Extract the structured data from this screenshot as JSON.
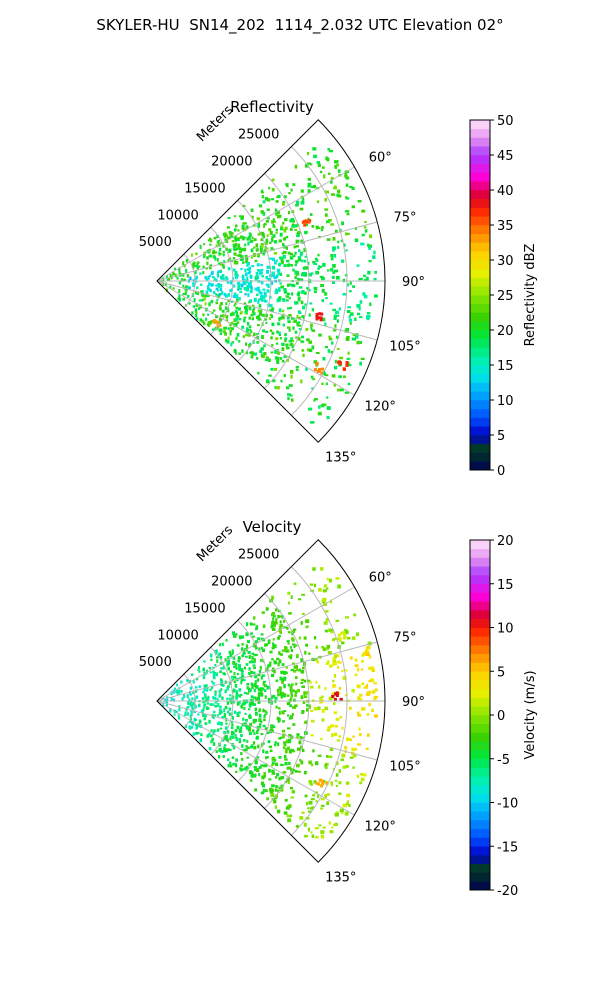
{
  "figure": {
    "title": "SKYLER-HU  SN14_202  1114_2.032 UTC Elevation 02°"
  },
  "chart_data": [
    {
      "type": "polar-sector",
      "title": "Reflectivity",
      "radial_axis_label": "Meters",
      "radial_range": [
        0,
        30000
      ],
      "radial_ticks": [
        5000,
        10000,
        15000,
        20000,
        25000
      ],
      "radial_tick_labels": [
        "5000",
        "10000",
        "15000",
        "20000",
        "25000"
      ],
      "azimuth_range_deg": [
        45,
        135
      ],
      "azimuth_ticks_deg": [
        60,
        75,
        90,
        105,
        120,
        135
      ],
      "azimuth_tick_labels": [
        "60°",
        "75°",
        "90°",
        "105°",
        "120°",
        "135°"
      ],
      "grid": true,
      "colorbar": {
        "label": "Reflectivity dBZ",
        "range": [
          0,
          50
        ],
        "ticks": [
          0,
          5,
          10,
          15,
          20,
          25,
          30,
          35,
          40,
          45,
          50
        ],
        "tick_labels": [
          "0",
          "5",
          "10",
          "15",
          "20",
          "25",
          "30",
          "35",
          "40",
          "45",
          "50"
        ],
        "placement": "right"
      },
      "field_summary": {
        "near_range": {
          "range": [
            0,
            12000
          ],
          "typical_value": 21
        },
        "center_band_80_100deg": {
          "range": [
            5000,
            14000
          ],
          "typical_value": 13
        },
        "north_band_55_80deg": {
          "range": [
            6000,
            26000
          ],
          "typical_value": 19
        },
        "south_band_100_135deg": {
          "range": [
            6000,
            28000
          ],
          "typical_value": 20
        },
        "scattered_cells": [
          {
            "azimuth_deg": 68,
            "range": 21000,
            "value": 36
          },
          {
            "azimuth_deg": 102,
            "range": 21500,
            "value": 38
          },
          {
            "azimuth_deg": 114,
            "range": 26500,
            "value": 37
          },
          {
            "azimuth_deg": 118,
            "range": 24000,
            "value": 34
          },
          {
            "azimuth_deg": 125,
            "range": 9500,
            "value": 33
          }
        ]
      }
    },
    {
      "type": "polar-sector",
      "title": "Velocity",
      "radial_axis_label": "Meters",
      "radial_range": [
        0,
        30000
      ],
      "radial_ticks": [
        5000,
        10000,
        15000,
        20000,
        25000
      ],
      "radial_tick_labels": [
        "5000",
        "10000",
        "15000",
        "20000",
        "25000"
      ],
      "azimuth_range_deg": [
        45,
        135
      ],
      "azimuth_ticks_deg": [
        60,
        75,
        90,
        105,
        120,
        135
      ],
      "azimuth_tick_labels": [
        "60°",
        "75°",
        "90°",
        "105°",
        "120°",
        "135°"
      ],
      "grid": true,
      "colorbar": {
        "label": "Velocity (m/s)",
        "range": [
          -20,
          20
        ],
        "ticks": [
          -20,
          -15,
          -10,
          -5,
          0,
          5,
          10,
          15,
          20
        ],
        "tick_labels": [
          "-20",
          "-15",
          "-10",
          "-5",
          "0",
          "5",
          "10",
          "15",
          "20"
        ],
        "placement": "right"
      },
      "field_summary": {
        "near_range": {
          "range": [
            0,
            14000
          ],
          "typical_value": -8
        },
        "mid_range": {
          "range": [
            14000,
            22000
          ],
          "typical_value": -4
        },
        "far_range": {
          "range": [
            22000,
            29000
          ],
          "typical_value": 1
        },
        "scattered_cells": [
          {
            "azimuth_deg": 70,
            "range": 25500,
            "value": 2
          },
          {
            "azimuth_deg": 88,
            "range": 23500,
            "value": 11
          },
          {
            "azimuth_deg": 116,
            "range": 24000,
            "value": 6
          }
        ]
      }
    }
  ]
}
